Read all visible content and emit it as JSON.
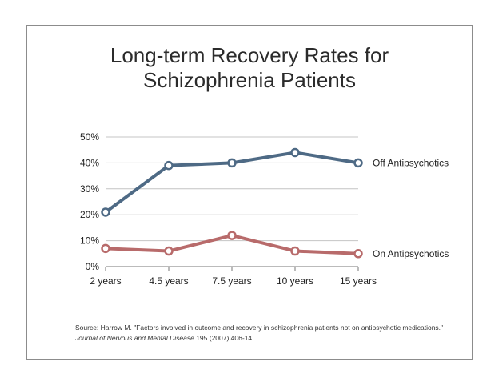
{
  "chart_data": {
    "type": "line",
    "title": "Long-term Recovery Rates for\nSchizophrenia Patients",
    "xlabel": "",
    "ylabel": "",
    "categories": [
      "2 years",
      "4.5 years",
      "7.5 years",
      "10 years",
      "15 years"
    ],
    "ylim": [
      0,
      50
    ],
    "yticks": [
      "0%",
      "10%",
      "20%",
      "30%",
      "40%",
      "50%"
    ],
    "grid": true,
    "series": [
      {
        "name": "Off Antipsychotics",
        "values": [
          21,
          39,
          40,
          44,
          40
        ],
        "color": "#4e6a85"
      },
      {
        "name": "On Antipsychotics",
        "values": [
          7,
          6,
          12,
          6,
          5
        ],
        "color": "#b86b6b"
      }
    ]
  },
  "source": {
    "prefix": "Source: Harrow M. \"Factors involved in outcome and recovery in schizophrenia patients not on antipsychotic medications.\" ",
    "journal": "Journal of Nervous and Mental Disease",
    "suffix": " 195 (2007):406-14."
  }
}
